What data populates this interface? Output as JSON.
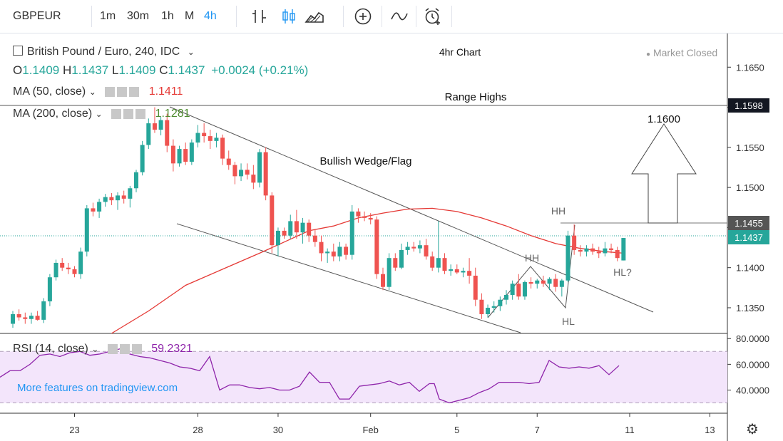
{
  "toolbar": {
    "symbol": "GBPEUR",
    "intervals": [
      "1m",
      "30m",
      "1h",
      "M",
      "4h"
    ],
    "active_interval": "4h",
    "tools": [
      "candle-type-icon",
      "candles-icon",
      "area-icon",
      "add-icon",
      "indicators-icon",
      "alert-icon"
    ]
  },
  "header": {
    "instrument": "British Pound / Euro, 240, IDC",
    "ohlc": {
      "O": "1.1409",
      "H": "1.1437",
      "L": "1.1409",
      "C": "1.1437",
      "change": "+0.0024 (+0.21%)"
    },
    "status": "Market Closed"
  },
  "indicators": [
    {
      "name": "MA (50, close)",
      "value": "1.1411",
      "color": "#e53935"
    },
    {
      "name": "MA (200, close)",
      "value": "1.1281",
      "color": "#4e8c2f"
    },
    {
      "name": "RSI (14, close)",
      "value": "59.2321",
      "color": "#8e24aa"
    }
  ],
  "annotations": {
    "chart_title": "4hr Chart",
    "range_highs": "Range Highs",
    "wedge": "Bullish Wedge/Flag",
    "target": "1.1600",
    "hh1": "HH",
    "hh2": "HH",
    "hl1": "HL",
    "hl2": "HL?"
  },
  "price_labels": {
    "range_high": "1.1598",
    "resistance": "1.1455",
    "last": "1.1437"
  },
  "brand": "More features on tradingview.com",
  "chart_data": {
    "type": "candlestick",
    "price_axis": {
      "ticks": [
        "1.1650",
        "1.1600",
        "1.1550",
        "1.1500",
        "1.1450",
        "1.1400",
        "1.1350"
      ],
      "range": [
        1.1318,
        1.1692
      ]
    },
    "rsi_axis": {
      "ticks": [
        "80.0000",
        "60.0000",
        "40.0000"
      ],
      "range": [
        22,
        84
      ],
      "band": [
        30,
        70
      ]
    },
    "x_ticks": [
      {
        "label": "23",
        "idx": 10
      },
      {
        "label": "28",
        "idx": 30
      },
      {
        "label": "30",
        "idx": 43
      },
      {
        "label": "Feb",
        "idx": 58
      },
      {
        "label": "5",
        "idx": 72
      },
      {
        "label": "7",
        "idx": 85
      },
      {
        "label": "11",
        "idx": 100
      },
      {
        "label": "13",
        "idx": 113
      }
    ],
    "candles": [
      [
        1.133,
        1.1346,
        1.1325,
        1.1342
      ],
      [
        1.1342,
        1.1348,
        1.1334,
        1.1338
      ],
      [
        1.1338,
        1.1344,
        1.133,
        1.1336
      ],
      [
        1.1336,
        1.1344,
        1.133,
        1.134
      ],
      [
        1.134,
        1.1346,
        1.1334,
        1.1335
      ],
      [
        1.1335,
        1.1362,
        1.1331,
        1.1358
      ],
      [
        1.1358,
        1.1392,
        1.1352,
        1.1388
      ],
      [
        1.1388,
        1.141,
        1.1384,
        1.1406
      ],
      [
        1.1406,
        1.1412,
        1.1396,
        1.14
      ],
      [
        1.14,
        1.1406,
        1.1392,
        1.1398
      ],
      [
        1.1398,
        1.1402,
        1.1388,
        1.1392
      ],
      [
        1.1392,
        1.1425,
        1.1386,
        1.142
      ],
      [
        1.142,
        1.1478,
        1.1414,
        1.1474
      ],
      [
        1.1474,
        1.1481,
        1.1464,
        1.147
      ],
      [
        1.147,
        1.1486,
        1.1462,
        1.1482
      ],
      [
        1.1482,
        1.1492,
        1.1476,
        1.1488
      ],
      [
        1.1488,
        1.1493,
        1.1478,
        1.1484
      ],
      [
        1.1484,
        1.1494,
        1.1472,
        1.149
      ],
      [
        1.149,
        1.1496,
        1.148,
        1.1486
      ],
      [
        1.1486,
        1.1502,
        1.1475,
        1.1499
      ],
      [
        1.1499,
        1.1522,
        1.1494,
        1.1519
      ],
      [
        1.1519,
        1.1558,
        1.1515,
        1.1553
      ],
      [
        1.1553,
        1.1586,
        1.1548,
        1.158
      ],
      [
        1.158,
        1.16,
        1.1568,
        1.1572
      ],
      [
        1.1572,
        1.1588,
        1.1565,
        1.1584
      ],
      [
        1.1584,
        1.1592,
        1.1544,
        1.1552
      ],
      [
        1.1552,
        1.156,
        1.152,
        1.153
      ],
      [
        1.153,
        1.1552,
        1.1526,
        1.1548
      ],
      [
        1.1548,
        1.1556,
        1.1528,
        1.1532
      ],
      [
        1.1532,
        1.156,
        1.1528,
        1.1556
      ],
      [
        1.1556,
        1.1578,
        1.155,
        1.1568
      ],
      [
        1.1568,
        1.158,
        1.1556,
        1.1564
      ],
      [
        1.1564,
        1.1572,
        1.1548,
        1.1558
      ],
      [
        1.1558,
        1.1568,
        1.155,
        1.1562
      ],
      [
        1.1562,
        1.1566,
        1.1528,
        1.1536
      ],
      [
        1.1536,
        1.1546,
        1.1522,
        1.1528
      ],
      [
        1.1528,
        1.1532,
        1.1504,
        1.1514
      ],
      [
        1.1514,
        1.153,
        1.1508,
        1.1522
      ],
      [
        1.1522,
        1.153,
        1.151,
        1.1516
      ],
      [
        1.1516,
        1.1528,
        1.1498,
        1.1506
      ],
      [
        1.1506,
        1.1548,
        1.15,
        1.1544
      ],
      [
        1.1544,
        1.155,
        1.1484,
        1.149
      ],
      [
        1.149,
        1.1494,
        1.1418,
        1.1428
      ],
      [
        1.1428,
        1.145,
        1.1414,
        1.1446
      ],
      [
        1.1446,
        1.145,
        1.1436,
        1.144
      ],
      [
        1.144,
        1.1466,
        1.1436,
        1.1458
      ],
      [
        1.1458,
        1.1472,
        1.1436,
        1.1444
      ],
      [
        1.1444,
        1.1462,
        1.143,
        1.1456
      ],
      [
        1.1456,
        1.146,
        1.1432,
        1.144
      ],
      [
        1.144,
        1.1448,
        1.1426,
        1.1432
      ],
      [
        1.1432,
        1.144,
        1.1408,
        1.1418
      ],
      [
        1.1418,
        1.1424,
        1.1406,
        1.142
      ],
      [
        1.142,
        1.143,
        1.1408,
        1.1414
      ],
      [
        1.1414,
        1.1432,
        1.1408,
        1.1426
      ],
      [
        1.1426,
        1.143,
        1.141,
        1.1416
      ],
      [
        1.1416,
        1.1478,
        1.141,
        1.147
      ],
      [
        1.147,
        1.1474,
        1.1456,
        1.1464
      ],
      [
        1.1464,
        1.147,
        1.1458,
        1.1462
      ],
      [
        1.1462,
        1.1468,
        1.1454,
        1.146
      ],
      [
        1.146,
        1.1464,
        1.1386,
        1.1392
      ],
      [
        1.1392,
        1.14,
        1.1372,
        1.1376
      ],
      [
        1.1376,
        1.1418,
        1.1372,
        1.1412
      ],
      [
        1.1412,
        1.1418,
        1.1396,
        1.14
      ],
      [
        1.14,
        1.143,
        1.1398,
        1.1422
      ],
      [
        1.1422,
        1.1432,
        1.1416,
        1.1426
      ],
      [
        1.1426,
        1.1432,
        1.142,
        1.1424
      ],
      [
        1.1424,
        1.1434,
        1.1418,
        1.1428
      ],
      [
        1.1428,
        1.1436,
        1.141,
        1.1414
      ],
      [
        1.1414,
        1.142,
        1.1396,
        1.14
      ],
      [
        1.14,
        1.1458,
        1.1394,
        1.1412
      ],
      [
        1.1412,
        1.1418,
        1.1392,
        1.1396
      ],
      [
        1.1396,
        1.1404,
        1.139,
        1.1398
      ],
      [
        1.1398,
        1.1404,
        1.1392,
        1.1394
      ],
      [
        1.1394,
        1.14,
        1.1388,
        1.1396
      ],
      [
        1.1396,
        1.1412,
        1.138,
        1.139
      ],
      [
        1.139,
        1.14,
        1.1352,
        1.136
      ],
      [
        1.136,
        1.1368,
        1.1336,
        1.1342
      ],
      [
        1.1342,
        1.1354,
        1.1338,
        1.135
      ],
      [
        1.135,
        1.1358,
        1.1344,
        1.1352
      ],
      [
        1.1352,
        1.1364,
        1.1346,
        1.136
      ],
      [
        1.136,
        1.1372,
        1.1354,
        1.1366
      ],
      [
        1.1366,
        1.1384,
        1.136,
        1.138
      ],
      [
        1.138,
        1.1392,
        1.136,
        1.1364
      ],
      [
        1.1364,
        1.1384,
        1.136,
        1.1382
      ],
      [
        1.1382,
        1.1388,
        1.1374,
        1.138
      ],
      [
        1.138,
        1.1386,
        1.1374,
        1.1384
      ],
      [
        1.1384,
        1.139,
        1.1376,
        1.138
      ],
      [
        1.138,
        1.1388,
        1.1372,
        1.1386
      ],
      [
        1.1386,
        1.1392,
        1.137,
        1.1376
      ],
      [
        1.1376,
        1.1386,
        1.1364,
        1.1384
      ],
      [
        1.1384,
        1.1446,
        1.1382,
        1.144
      ],
      [
        1.144,
        1.1454,
        1.1416,
        1.1422
      ],
      [
        1.1422,
        1.1428,
        1.1414,
        1.142
      ],
      [
        1.142,
        1.1428,
        1.1414,
        1.1424
      ],
      [
        1.1424,
        1.143,
        1.1416,
        1.142
      ],
      [
        1.142,
        1.1426,
        1.1412,
        1.1418
      ],
      [
        1.1418,
        1.1432,
        1.1414,
        1.1424
      ],
      [
        1.1424,
        1.143,
        1.1418,
        1.1422
      ],
      [
        1.1422,
        1.1426,
        1.1408,
        1.1412
      ],
      [
        1.1409,
        1.1437,
        1.1409,
        1.1437
      ]
    ],
    "ma50": [
      [
        16,
        1.1318
      ],
      [
        22,
        1.1346
      ],
      [
        28,
        1.1378
      ],
      [
        34,
        1.1398
      ],
      [
        40,
        1.1418
      ],
      [
        44,
        1.1432
      ],
      [
        48,
        1.1446
      ],
      [
        52,
        1.1452
      ],
      [
        56,
        1.1462
      ],
      [
        60,
        1.1468
      ],
      [
        64,
        1.1473
      ],
      [
        68,
        1.1474
      ],
      [
        72,
        1.147
      ],
      [
        76,
        1.1462
      ],
      [
        80,
        1.1452
      ],
      [
        84,
        1.144
      ],
      [
        88,
        1.143
      ],
      [
        92,
        1.1424
      ],
      [
        96,
        1.142
      ],
      [
        99,
        1.1418
      ]
    ],
    "rsi": [
      [
        0,
        50
      ],
      [
        2,
        55
      ],
      [
        4,
        55
      ],
      [
        6,
        60
      ],
      [
        8,
        67
      ],
      [
        10,
        68
      ],
      [
        12,
        66
      ],
      [
        14,
        69
      ],
      [
        16,
        70
      ],
      [
        18,
        67
      ],
      [
        20,
        68
      ],
      [
        22,
        70
      ],
      [
        24,
        72
      ],
      [
        25,
        73
      ],
      [
        26,
        68
      ],
      [
        28,
        66
      ],
      [
        30,
        65
      ],
      [
        32,
        63
      ],
      [
        34,
        61
      ],
      [
        36,
        58
      ],
      [
        38,
        57
      ],
      [
        40,
        55
      ],
      [
        42,
        66
      ],
      [
        44,
        40
      ],
      [
        46,
        44
      ],
      [
        48,
        44
      ],
      [
        50,
        42
      ],
      [
        52,
        41
      ],
      [
        54,
        42
      ],
      [
        56,
        40
      ],
      [
        58,
        40
      ],
      [
        60,
        43
      ],
      [
        62,
        54
      ],
      [
        64,
        46
      ],
      [
        66,
        46
      ],
      [
        68,
        33
      ],
      [
        70,
        33
      ],
      [
        72,
        43
      ],
      [
        74,
        44
      ],
      [
        76,
        45
      ],
      [
        78,
        47
      ],
      [
        80,
        44
      ],
      [
        82,
        46
      ],
      [
        84,
        39
      ],
      [
        86,
        45
      ],
      [
        87,
        45
      ],
      [
        88,
        33
      ],
      [
        90,
        30
      ],
      [
        92,
        32
      ],
      [
        94,
        34
      ],
      [
        96,
        38
      ],
      [
        98,
        41
      ],
      [
        100,
        46
      ],
      [
        102,
        46
      ],
      [
        104,
        46
      ],
      [
        106,
        45
      ],
      [
        108,
        46
      ],
      [
        110,
        63
      ],
      [
        112,
        58
      ],
      [
        114,
        57
      ],
      [
        116,
        58
      ],
      [
        118,
        57
      ],
      [
        120,
        59
      ],
      [
        122,
        52
      ],
      [
        124,
        59
      ]
    ]
  }
}
